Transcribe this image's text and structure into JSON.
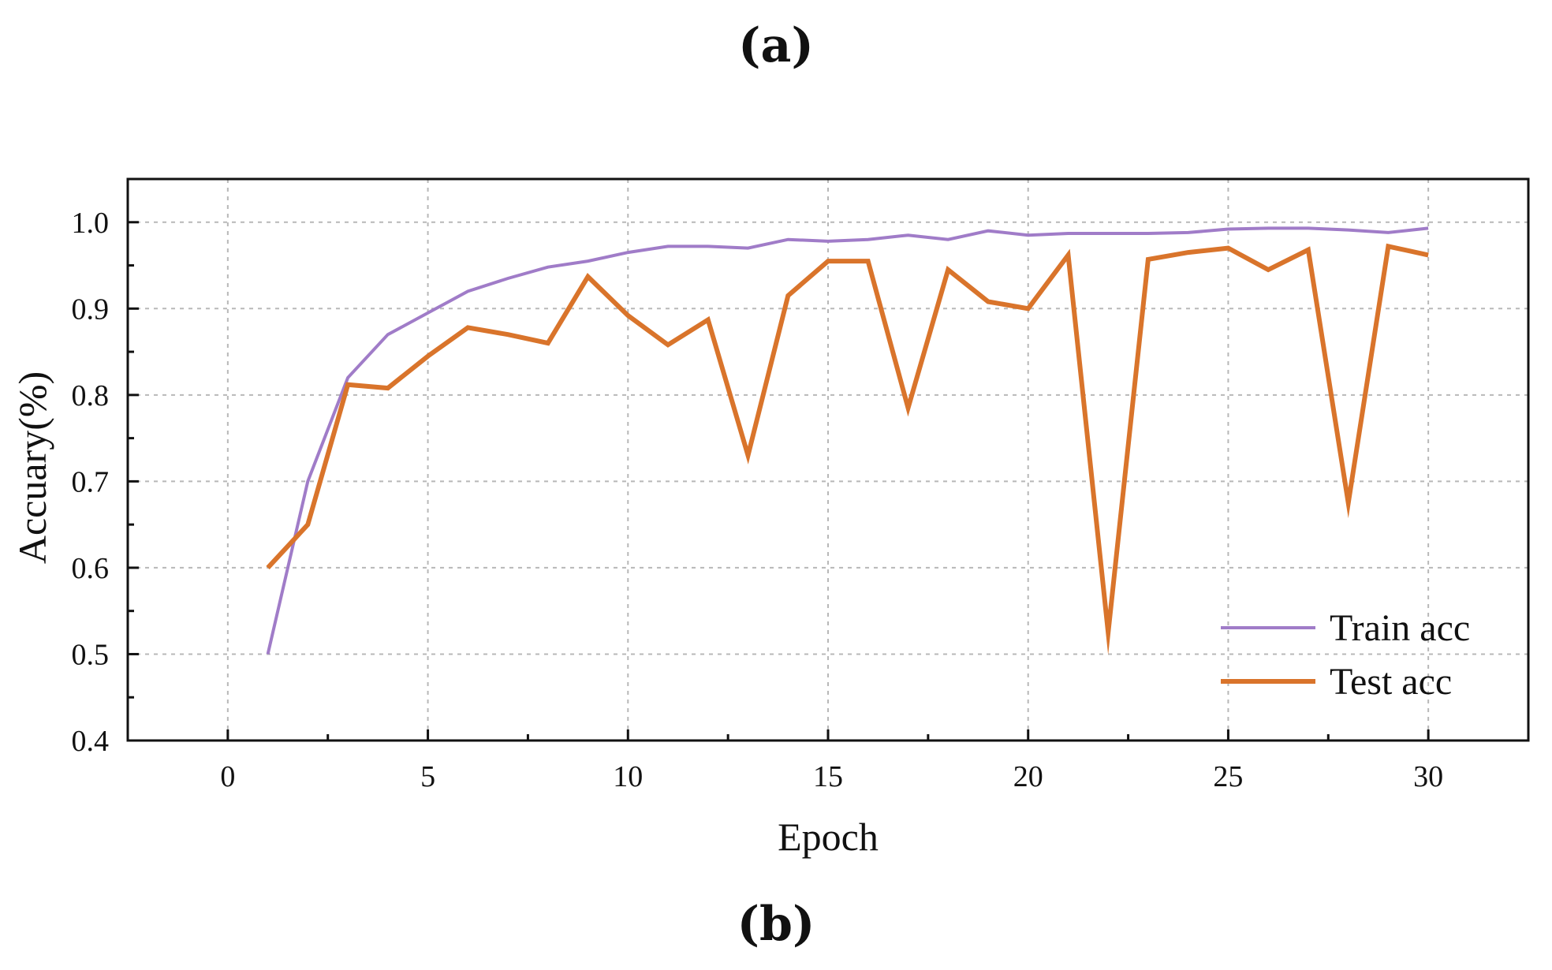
{
  "panels": {
    "top_label": "(a)",
    "bottom_label": "(b)"
  },
  "chart_data": {
    "type": "line",
    "xlabel": "Epoch",
    "ylabel": "Accuary(%)",
    "xlim": [
      -2.5,
      32.5
    ],
    "ylim": [
      0.4,
      1.05
    ],
    "xticks": [
      0,
      5,
      10,
      15,
      20,
      25,
      30
    ],
    "xtick_labels": [
      "0",
      "5",
      "10",
      "15",
      "20",
      "25",
      "30"
    ],
    "yticks": [
      0.4,
      0.5,
      0.6,
      0.7,
      0.8,
      0.9,
      1.0
    ],
    "ytick_labels": [
      "0.4",
      "0.5",
      "0.6",
      "0.7",
      "0.8",
      "0.9",
      "1.0"
    ],
    "grid": true,
    "legend_position": "bottom-right",
    "x": [
      1,
      2,
      3,
      4,
      5,
      6,
      7,
      8,
      9,
      10,
      11,
      12,
      13,
      14,
      15,
      16,
      17,
      18,
      19,
      20,
      21,
      22,
      23,
      24,
      25,
      26,
      27,
      28,
      29,
      30
    ],
    "series": [
      {
        "name": "Train acc",
        "color": "#a07cc8",
        "values": [
          0.5,
          0.7,
          0.82,
          0.87,
          0.895,
          0.92,
          0.935,
          0.948,
          0.955,
          0.965,
          0.972,
          0.972,
          0.97,
          0.98,
          0.978,
          0.98,
          0.985,
          0.98,
          0.99,
          0.985,
          0.987,
          0.987,
          0.987,
          0.988,
          0.992,
          0.993,
          0.993,
          0.991,
          0.988,
          0.993
        ]
      },
      {
        "name": "Test acc",
        "color": "#d9742b",
        "values": [
          0.6,
          0.65,
          0.812,
          0.808,
          0.845,
          0.878,
          0.87,
          0.86,
          0.937,
          0.892,
          0.858,
          0.887,
          0.73,
          0.915,
          0.955,
          0.955,
          0.785,
          0.945,
          0.908,
          0.9,
          0.962,
          0.525,
          0.957,
          0.965,
          0.97,
          0.945,
          0.968,
          0.675,
          0.972,
          0.962
        ]
      }
    ]
  }
}
